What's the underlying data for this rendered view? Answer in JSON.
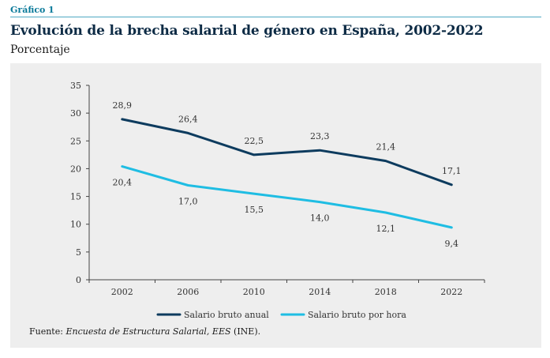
{
  "header": {
    "kicker": "Gráfico 1",
    "title": "Evolución de la brecha salarial de género en España, 2002-2022",
    "subtitle": "Porcentaje"
  },
  "source": {
    "prefix": "Fuente: ",
    "italic": "Encuesta de Estructura Salarial, EES",
    "suffix": " (INE)."
  },
  "colors": {
    "kicker": "#0a7a9a",
    "title": "#0d2b45",
    "panel": "#eeeeee",
    "series_annual": "#0d3b5e",
    "series_hourly": "#1fbde3"
  },
  "chart_data": {
    "type": "line",
    "x": [
      "2002",
      "2006",
      "2010",
      "2014",
      "2018",
      "2022"
    ],
    "ylim": [
      0,
      35
    ],
    "yticks": [
      "0",
      "5",
      "10",
      "15",
      "20",
      "25",
      "30",
      "35"
    ],
    "grid": false,
    "legend_position": "bottom",
    "series": [
      {
        "name": "Salario bruto anual",
        "values": [
          28.9,
          26.4,
          22.5,
          23.3,
          21.4,
          17.1
        ],
        "labels": [
          "28,9",
          "26,4",
          "22,5",
          "23,3",
          "21,4",
          "17,1"
        ],
        "color": "#0d3b5e",
        "label_position": "above"
      },
      {
        "name": "Salario bruto por hora",
        "values": [
          20.4,
          17.0,
          15.5,
          14.0,
          12.1,
          9.4
        ],
        "labels": [
          "20,4",
          "17,0",
          "15,5",
          "14,0",
          "12,1",
          "9,4"
        ],
        "color": "#1fbde3",
        "label_position": "below"
      }
    ]
  }
}
